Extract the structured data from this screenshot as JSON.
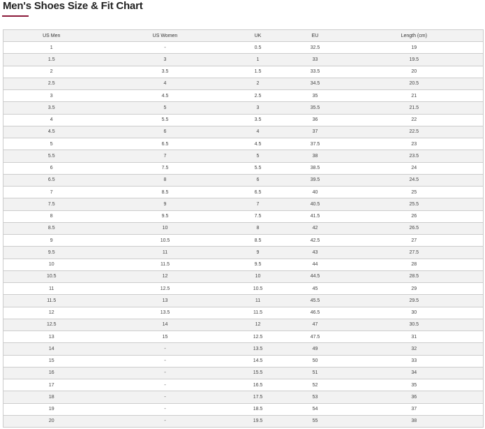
{
  "title": "Men's Shoes Size & Fit Chart",
  "accent_color": "#8b1a3a",
  "table": {
    "headers": [
      "US Men",
      "US Women",
      "UK",
      "EU",
      "Length (cm)"
    ],
    "rows": [
      [
        "1",
        "-",
        "0.5",
        "32.5",
        "19"
      ],
      [
        "1.5",
        "3",
        "1",
        "33",
        "19.5"
      ],
      [
        "2",
        "3.5",
        "1.5",
        "33.5",
        "20"
      ],
      [
        "2.5",
        "4",
        "2",
        "34.5",
        "20.5"
      ],
      [
        "3",
        "4.5",
        "2.5",
        "35",
        "21"
      ],
      [
        "3.5",
        "5",
        "3",
        "35.5",
        "21.5"
      ],
      [
        "4",
        "5.5",
        "3.5",
        "36",
        "22"
      ],
      [
        "4.5",
        "6",
        "4",
        "37",
        "22.5"
      ],
      [
        "5",
        "6.5",
        "4.5",
        "37.5",
        "23"
      ],
      [
        "5.5",
        "7",
        "5",
        "38",
        "23.5"
      ],
      [
        "6",
        "7.5",
        "5.5",
        "38.5",
        "24"
      ],
      [
        "6.5",
        "8",
        "6",
        "39.5",
        "24.5"
      ],
      [
        "7",
        "8.5",
        "6.5",
        "40",
        "25"
      ],
      [
        "7.5",
        "9",
        "7",
        "40.5",
        "25.5"
      ],
      [
        "8",
        "9.5",
        "7.5",
        "41.5",
        "26"
      ],
      [
        "8.5",
        "10",
        "8",
        "42",
        "26.5"
      ],
      [
        "9",
        "10.5",
        "8.5",
        "42.5",
        "27"
      ],
      [
        "9.5",
        "11",
        "9",
        "43",
        "27.5"
      ],
      [
        "10",
        "11.5",
        "9.5",
        "44",
        "28"
      ],
      [
        "10.5",
        "12",
        "10",
        "44.5",
        "28.5"
      ],
      [
        "11",
        "12.5",
        "10.5",
        "45",
        "29"
      ],
      [
        "11.5",
        "13",
        "11",
        "45.5",
        "29.5"
      ],
      [
        "12",
        "13.5",
        "11.5",
        "46.5",
        "30"
      ],
      [
        "12.5",
        "14",
        "12",
        "47",
        "30.5"
      ],
      [
        "13",
        "15",
        "12.5",
        "47.5",
        "31"
      ],
      [
        "14",
        "-",
        "13.5",
        "49",
        "32"
      ],
      [
        "15",
        "-",
        "14.5",
        "50",
        "33"
      ],
      [
        "16",
        "-",
        "15.5",
        "51",
        "34"
      ],
      [
        "17",
        "-",
        "16.5",
        "52",
        "35"
      ],
      [
        "18",
        "-",
        "17.5",
        "53",
        "36"
      ],
      [
        "19",
        "-",
        "18.5",
        "54",
        "37"
      ],
      [
        "20",
        "-",
        "19.5",
        "55",
        "38"
      ]
    ]
  }
}
